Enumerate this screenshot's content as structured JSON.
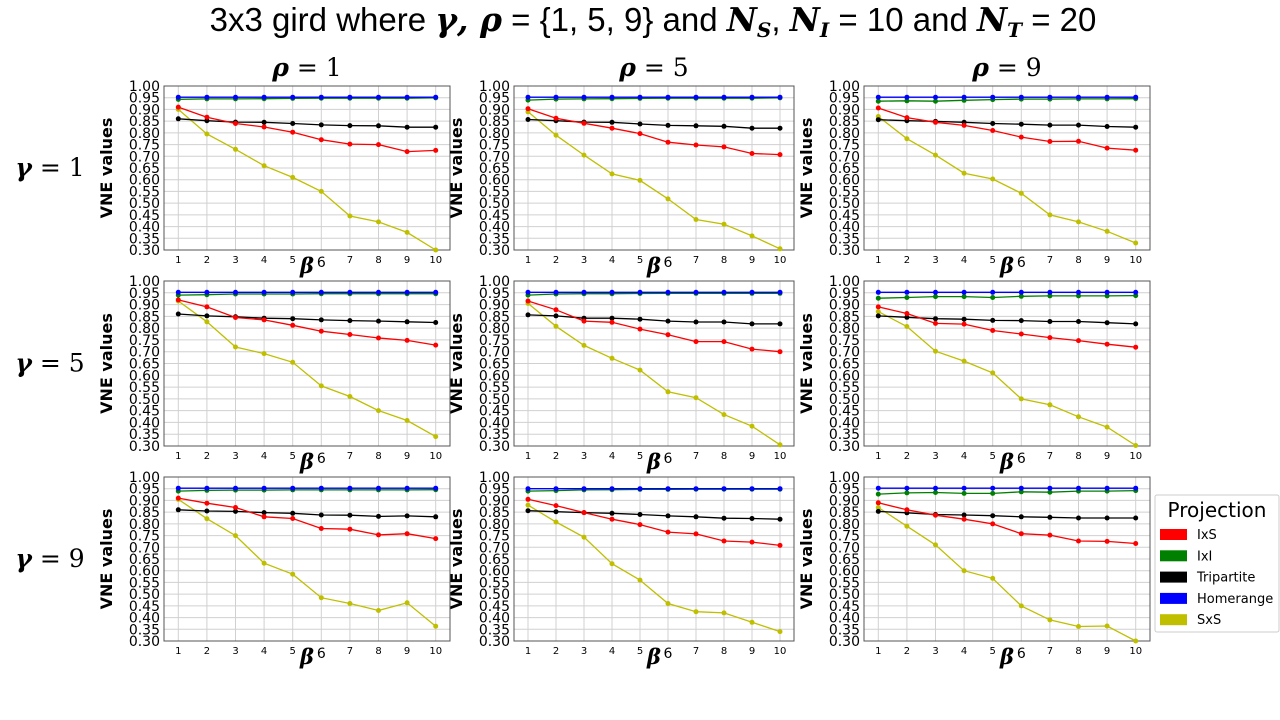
{
  "figure": {
    "title_prefix": "3x3 gird where ",
    "title_gamma_rho": "γ, ρ",
    "title_set": " = {1, 5, 9} and ",
    "title_N": "N",
    "title_S": "S",
    "title_comma": ", ",
    "title_I": "I",
    "title_eq10": " = 10 and ",
    "title_T": "T",
    "title_eq20": " = 20"
  },
  "colors": {
    "IxS": "#ff0000",
    "IxI": "#008000",
    "Tripartite": "#000000",
    "Homerange": "#0000ff",
    "SxS": "#bfbf00",
    "grid": "#d0d0d0"
  },
  "legend": {
    "title": "Projection",
    "entries": [
      "IxS",
      "IxI",
      "Tripartite",
      "Homerange",
      "SxS"
    ]
  },
  "chart_data": [
    {
      "type": "line",
      "row_label": "γ = 1",
      "col_label": "ρ = 1",
      "xlabel": "β",
      "ylabel": "VNE values",
      "ylim": [
        0.3,
        1.0
      ],
      "x": [
        1,
        2,
        3,
        4,
        5,
        6,
        7,
        8,
        9,
        10
      ],
      "series": [
        {
          "name": "IxS",
          "values": [
            0.91,
            0.867,
            0.84,
            0.825,
            0.803,
            0.771,
            0.752,
            0.75,
            0.72,
            0.725
          ]
        },
        {
          "name": "IxI",
          "values": [
            0.943,
            0.945,
            0.945,
            0.946,
            0.947,
            0.948,
            0.948,
            0.948,
            0.948,
            0.949
          ]
        },
        {
          "name": "Tripartite",
          "values": [
            0.86,
            0.852,
            0.846,
            0.845,
            0.84,
            0.834,
            0.831,
            0.83,
            0.824,
            0.824
          ]
        },
        {
          "name": "Homerange",
          "values": [
            0.952,
            0.952,
            0.952,
            0.952,
            0.952,
            0.952,
            0.952,
            0.952,
            0.952,
            0.952
          ]
        },
        {
          "name": "SxS",
          "values": [
            0.9,
            0.795,
            0.73,
            0.66,
            0.61,
            0.55,
            0.445,
            0.42,
            0.375,
            0.3
          ]
        }
      ]
    },
    {
      "type": "line",
      "row_label": "γ = 1",
      "col_label": "ρ = 5",
      "xlabel": "β",
      "ylabel": "VNE values",
      "ylim": [
        0.3,
        1.0
      ],
      "x": [
        1,
        2,
        3,
        4,
        5,
        6,
        7,
        8,
        9,
        10
      ],
      "series": [
        {
          "name": "IxS",
          "values": [
            0.903,
            0.862,
            0.841,
            0.82,
            0.797,
            0.76,
            0.748,
            0.74,
            0.712,
            0.707
          ]
        },
        {
          "name": "IxI",
          "values": [
            0.94,
            0.944,
            0.945,
            0.946,
            0.947,
            0.948,
            0.948,
            0.948,
            0.948,
            0.949
          ]
        },
        {
          "name": "Tripartite",
          "values": [
            0.857,
            0.852,
            0.846,
            0.845,
            0.838,
            0.832,
            0.83,
            0.828,
            0.82,
            0.82
          ]
        },
        {
          "name": "Homerange",
          "values": [
            0.952,
            0.952,
            0.952,
            0.952,
            0.952,
            0.952,
            0.952,
            0.952,
            0.952,
            0.952
          ]
        },
        {
          "name": "SxS",
          "values": [
            0.89,
            0.79,
            0.705,
            0.625,
            0.597,
            0.518,
            0.43,
            0.41,
            0.36,
            0.305
          ]
        }
      ]
    },
    {
      "type": "line",
      "row_label": "γ = 1",
      "col_label": "ρ = 9",
      "xlabel": "β",
      "ylabel": "VNE values",
      "ylim": [
        0.3,
        1.0
      ],
      "x": [
        1,
        2,
        3,
        4,
        5,
        6,
        7,
        8,
        9,
        10
      ],
      "series": [
        {
          "name": "IxS",
          "values": [
            0.906,
            0.865,
            0.845,
            0.832,
            0.81,
            0.782,
            0.763,
            0.764,
            0.735,
            0.726
          ]
        },
        {
          "name": "IxI",
          "values": [
            0.935,
            0.937,
            0.935,
            0.939,
            0.942,
            0.944,
            0.944,
            0.945,
            0.945,
            0.946
          ]
        },
        {
          "name": "Tripartite",
          "values": [
            0.856,
            0.852,
            0.849,
            0.845,
            0.84,
            0.837,
            0.833,
            0.833,
            0.827,
            0.824
          ]
        },
        {
          "name": "Homerange",
          "values": [
            0.952,
            0.952,
            0.952,
            0.952,
            0.952,
            0.952,
            0.952,
            0.952,
            0.952,
            0.952
          ]
        },
        {
          "name": "SxS",
          "values": [
            0.87,
            0.775,
            0.705,
            0.628,
            0.603,
            0.542,
            0.45,
            0.42,
            0.38,
            0.33
          ]
        }
      ]
    },
    {
      "type": "line",
      "row_label": "γ = 5",
      "col_label": "ρ = 1",
      "xlabel": "β",
      "ylabel": "VNE values",
      "ylim": [
        0.3,
        1.0
      ],
      "x": [
        1,
        2,
        3,
        4,
        5,
        6,
        7,
        8,
        9,
        10
      ],
      "series": [
        {
          "name": "IxS",
          "values": [
            0.92,
            0.89,
            0.845,
            0.835,
            0.812,
            0.787,
            0.773,
            0.758,
            0.748,
            0.728
          ]
        },
        {
          "name": "IxI",
          "values": [
            0.94,
            0.942,
            0.945,
            0.945,
            0.945,
            0.946,
            0.946,
            0.946,
            0.946,
            0.946
          ]
        },
        {
          "name": "Tripartite",
          "values": [
            0.86,
            0.852,
            0.848,
            0.842,
            0.84,
            0.835,
            0.832,
            0.83,
            0.827,
            0.824
          ]
        },
        {
          "name": "Homerange",
          "values": [
            0.952,
            0.952,
            0.952,
            0.952,
            0.952,
            0.952,
            0.952,
            0.952,
            0.952,
            0.952
          ]
        },
        {
          "name": "SxS",
          "values": [
            0.915,
            0.827,
            0.72,
            0.692,
            0.655,
            0.555,
            0.51,
            0.45,
            0.408,
            0.34
          ]
        }
      ]
    },
    {
      "type": "line",
      "row_label": "γ = 5",
      "col_label": "ρ = 5",
      "xlabel": "β",
      "ylabel": "VNE values",
      "ylim": [
        0.3,
        1.0
      ],
      "x": [
        1,
        2,
        3,
        4,
        5,
        6,
        7,
        8,
        9,
        10
      ],
      "series": [
        {
          "name": "IxS",
          "values": [
            0.915,
            0.878,
            0.83,
            0.825,
            0.796,
            0.772,
            0.743,
            0.743,
            0.711,
            0.7
          ]
        },
        {
          "name": "IxI",
          "values": [
            0.94,
            0.945,
            0.946,
            0.946,
            0.947,
            0.948,
            0.948,
            0.948,
            0.948,
            0.948
          ]
        },
        {
          "name": "Tripartite",
          "values": [
            0.856,
            0.852,
            0.842,
            0.842,
            0.838,
            0.83,
            0.826,
            0.826,
            0.818,
            0.818
          ]
        },
        {
          "name": "Homerange",
          "values": [
            0.952,
            0.952,
            0.952,
            0.952,
            0.952,
            0.952,
            0.952,
            0.952,
            0.952,
            0.952
          ]
        },
        {
          "name": "SxS",
          "values": [
            0.905,
            0.808,
            0.727,
            0.672,
            0.622,
            0.53,
            0.505,
            0.433,
            0.384,
            0.305
          ]
        }
      ]
    },
    {
      "type": "line",
      "row_label": "γ = 5",
      "col_label": "ρ = 9",
      "xlabel": "β",
      "ylabel": "VNE values",
      "ylim": [
        0.3,
        1.0
      ],
      "x": [
        1,
        2,
        3,
        4,
        5,
        6,
        7,
        8,
        9,
        10
      ],
      "series": [
        {
          "name": "IxS",
          "values": [
            0.89,
            0.862,
            0.82,
            0.817,
            0.79,
            0.775,
            0.76,
            0.747,
            0.732,
            0.719
          ]
        },
        {
          "name": "IxI",
          "values": [
            0.927,
            0.93,
            0.934,
            0.934,
            0.93,
            0.935,
            0.937,
            0.937,
            0.937,
            0.938
          ]
        },
        {
          "name": "Tripartite",
          "values": [
            0.852,
            0.846,
            0.84,
            0.838,
            0.833,
            0.832,
            0.828,
            0.828,
            0.823,
            0.818
          ]
        },
        {
          "name": "Homerange",
          "values": [
            0.952,
            0.952,
            0.952,
            0.952,
            0.952,
            0.952,
            0.952,
            0.952,
            0.952,
            0.952
          ]
        },
        {
          "name": "SxS",
          "values": [
            0.87,
            0.807,
            0.702,
            0.66,
            0.61,
            0.5,
            0.475,
            0.424,
            0.38,
            0.302
          ]
        }
      ]
    },
    {
      "type": "line",
      "row_label": "γ = 9",
      "col_label": "ρ = 1",
      "xlabel": "β",
      "ylabel": "VNE values",
      "ylim": [
        0.3,
        1.0
      ],
      "x": [
        1,
        2,
        3,
        4,
        5,
        6,
        7,
        8,
        9,
        10
      ],
      "series": [
        {
          "name": "IxS",
          "values": [
            0.91,
            0.888,
            0.87,
            0.83,
            0.823,
            0.78,
            0.777,
            0.753,
            0.758,
            0.737
          ]
        },
        {
          "name": "IxI",
          "values": [
            0.94,
            0.943,
            0.944,
            0.944,
            0.945,
            0.945,
            0.945,
            0.945,
            0.945,
            0.946
          ]
        },
        {
          "name": "Tripartite",
          "values": [
            0.86,
            0.855,
            0.853,
            0.848,
            0.845,
            0.838,
            0.837,
            0.832,
            0.834,
            0.83
          ]
        },
        {
          "name": "Homerange",
          "values": [
            0.952,
            0.952,
            0.952,
            0.952,
            0.952,
            0.952,
            0.952,
            0.952,
            0.952,
            0.952
          ]
        },
        {
          "name": "SxS",
          "values": [
            0.905,
            0.822,
            0.75,
            0.632,
            0.585,
            0.485,
            0.46,
            0.43,
            0.463,
            0.363
          ]
        }
      ]
    },
    {
      "type": "line",
      "row_label": "γ = 9",
      "col_label": "ρ = 5",
      "xlabel": "β",
      "ylabel": "VNE values",
      "ylim": [
        0.3,
        1.0
      ],
      "x": [
        1,
        2,
        3,
        4,
        5,
        6,
        7,
        8,
        9,
        10
      ],
      "series": [
        {
          "name": "IxS",
          "values": [
            0.905,
            0.878,
            0.848,
            0.82,
            0.797,
            0.765,
            0.757,
            0.727,
            0.722,
            0.708
          ]
        },
        {
          "name": "IxI",
          "values": [
            0.94,
            0.942,
            0.945,
            0.946,
            0.947,
            0.947,
            0.948,
            0.948,
            0.948,
            0.948
          ]
        },
        {
          "name": "Tripartite",
          "values": [
            0.856,
            0.852,
            0.848,
            0.845,
            0.84,
            0.834,
            0.83,
            0.824,
            0.823,
            0.82
          ]
        },
        {
          "name": "Homerange",
          "values": [
            0.95,
            0.95,
            0.95,
            0.95,
            0.95,
            0.95,
            0.95,
            0.95,
            0.95,
            0.95
          ]
        },
        {
          "name": "SxS",
          "values": [
            0.88,
            0.808,
            0.743,
            0.63,
            0.56,
            0.46,
            0.425,
            0.42,
            0.38,
            0.34
          ]
        }
      ]
    },
    {
      "type": "line",
      "row_label": "γ = 9",
      "col_label": "ρ = 9",
      "xlabel": "β",
      "ylabel": "VNE values",
      "ylim": [
        0.3,
        1.0
      ],
      "x": [
        1,
        2,
        3,
        4,
        5,
        6,
        7,
        8,
        9,
        10
      ],
      "series": [
        {
          "name": "IxS",
          "values": [
            0.89,
            0.86,
            0.837,
            0.82,
            0.8,
            0.758,
            0.752,
            0.727,
            0.725,
            0.716
          ]
        },
        {
          "name": "IxI",
          "values": [
            0.927,
            0.932,
            0.934,
            0.93,
            0.93,
            0.937,
            0.935,
            0.94,
            0.94,
            0.942
          ]
        },
        {
          "name": "Tripartite",
          "values": [
            0.853,
            0.847,
            0.84,
            0.838,
            0.835,
            0.83,
            0.828,
            0.825,
            0.825,
            0.825
          ]
        },
        {
          "name": "Homerange",
          "values": [
            0.952,
            0.952,
            0.952,
            0.952,
            0.952,
            0.952,
            0.952,
            0.952,
            0.952,
            0.952
          ]
        },
        {
          "name": "SxS",
          "values": [
            0.87,
            0.79,
            0.71,
            0.6,
            0.567,
            0.45,
            0.39,
            0.362,
            0.364,
            0.3
          ]
        }
      ]
    }
  ],
  "axis": {
    "yticks": [
      "0.30",
      "0.35",
      "0.40",
      "0.45",
      "0.50",
      "0.55",
      "0.60",
      "0.65",
      "0.70",
      "0.75",
      "0.80",
      "0.85",
      "0.90",
      "0.95",
      "1.00"
    ],
    "xticks_left": [
      "1",
      "2",
      "3",
      "4",
      "5"
    ],
    "xticks_right": [
      "7",
      "8",
      "9",
      "10"
    ]
  }
}
